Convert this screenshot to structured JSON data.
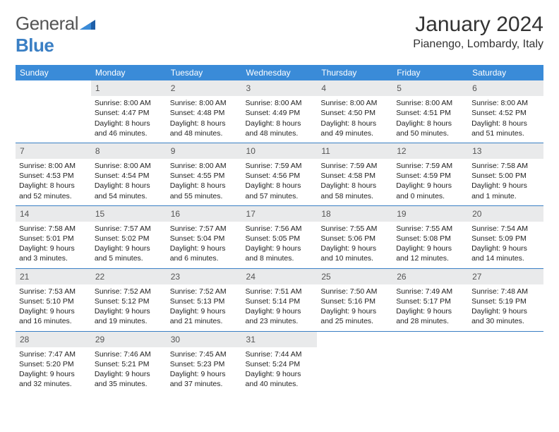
{
  "logo": {
    "word1": "General",
    "word2": "Blue"
  },
  "title": "January 2024",
  "location": "Pianengo, Lombardy, Italy",
  "colors": {
    "header_bg": "#3a8bd8",
    "header_text": "#ffffff",
    "daynum_bg": "#e9eaeb",
    "rule": "#3a7fc4",
    "logo_gray": "#555555",
    "logo_blue": "#3a7fc4"
  },
  "day_names": [
    "Sunday",
    "Monday",
    "Tuesday",
    "Wednesday",
    "Thursday",
    "Friday",
    "Saturday"
  ],
  "weeks": [
    {
      "nums": [
        "",
        "1",
        "2",
        "3",
        "4",
        "5",
        "6"
      ],
      "cells": [
        {
          "sunrise": "",
          "sunset": "",
          "daylight": ""
        },
        {
          "sunrise": "Sunrise: 8:00 AM",
          "sunset": "Sunset: 4:47 PM",
          "daylight": "Daylight: 8 hours and 46 minutes."
        },
        {
          "sunrise": "Sunrise: 8:00 AM",
          "sunset": "Sunset: 4:48 PM",
          "daylight": "Daylight: 8 hours and 48 minutes."
        },
        {
          "sunrise": "Sunrise: 8:00 AM",
          "sunset": "Sunset: 4:49 PM",
          "daylight": "Daylight: 8 hours and 48 minutes."
        },
        {
          "sunrise": "Sunrise: 8:00 AM",
          "sunset": "Sunset: 4:50 PM",
          "daylight": "Daylight: 8 hours and 49 minutes."
        },
        {
          "sunrise": "Sunrise: 8:00 AM",
          "sunset": "Sunset: 4:51 PM",
          "daylight": "Daylight: 8 hours and 50 minutes."
        },
        {
          "sunrise": "Sunrise: 8:00 AM",
          "sunset": "Sunset: 4:52 PM",
          "daylight": "Daylight: 8 hours and 51 minutes."
        }
      ]
    },
    {
      "nums": [
        "7",
        "8",
        "9",
        "10",
        "11",
        "12",
        "13"
      ],
      "cells": [
        {
          "sunrise": "Sunrise: 8:00 AM",
          "sunset": "Sunset: 4:53 PM",
          "daylight": "Daylight: 8 hours and 52 minutes."
        },
        {
          "sunrise": "Sunrise: 8:00 AM",
          "sunset": "Sunset: 4:54 PM",
          "daylight": "Daylight: 8 hours and 54 minutes."
        },
        {
          "sunrise": "Sunrise: 8:00 AM",
          "sunset": "Sunset: 4:55 PM",
          "daylight": "Daylight: 8 hours and 55 minutes."
        },
        {
          "sunrise": "Sunrise: 7:59 AM",
          "sunset": "Sunset: 4:56 PM",
          "daylight": "Daylight: 8 hours and 57 minutes."
        },
        {
          "sunrise": "Sunrise: 7:59 AM",
          "sunset": "Sunset: 4:58 PM",
          "daylight": "Daylight: 8 hours and 58 minutes."
        },
        {
          "sunrise": "Sunrise: 7:59 AM",
          "sunset": "Sunset: 4:59 PM",
          "daylight": "Daylight: 9 hours and 0 minutes."
        },
        {
          "sunrise": "Sunrise: 7:58 AM",
          "sunset": "Sunset: 5:00 PM",
          "daylight": "Daylight: 9 hours and 1 minute."
        }
      ]
    },
    {
      "nums": [
        "14",
        "15",
        "16",
        "17",
        "18",
        "19",
        "20"
      ],
      "cells": [
        {
          "sunrise": "Sunrise: 7:58 AM",
          "sunset": "Sunset: 5:01 PM",
          "daylight": "Daylight: 9 hours and 3 minutes."
        },
        {
          "sunrise": "Sunrise: 7:57 AM",
          "sunset": "Sunset: 5:02 PM",
          "daylight": "Daylight: 9 hours and 5 minutes."
        },
        {
          "sunrise": "Sunrise: 7:57 AM",
          "sunset": "Sunset: 5:04 PM",
          "daylight": "Daylight: 9 hours and 6 minutes."
        },
        {
          "sunrise": "Sunrise: 7:56 AM",
          "sunset": "Sunset: 5:05 PM",
          "daylight": "Daylight: 9 hours and 8 minutes."
        },
        {
          "sunrise": "Sunrise: 7:55 AM",
          "sunset": "Sunset: 5:06 PM",
          "daylight": "Daylight: 9 hours and 10 minutes."
        },
        {
          "sunrise": "Sunrise: 7:55 AM",
          "sunset": "Sunset: 5:08 PM",
          "daylight": "Daylight: 9 hours and 12 minutes."
        },
        {
          "sunrise": "Sunrise: 7:54 AM",
          "sunset": "Sunset: 5:09 PM",
          "daylight": "Daylight: 9 hours and 14 minutes."
        }
      ]
    },
    {
      "nums": [
        "21",
        "22",
        "23",
        "24",
        "25",
        "26",
        "27"
      ],
      "cells": [
        {
          "sunrise": "Sunrise: 7:53 AM",
          "sunset": "Sunset: 5:10 PM",
          "daylight": "Daylight: 9 hours and 16 minutes."
        },
        {
          "sunrise": "Sunrise: 7:52 AM",
          "sunset": "Sunset: 5:12 PM",
          "daylight": "Daylight: 9 hours and 19 minutes."
        },
        {
          "sunrise": "Sunrise: 7:52 AM",
          "sunset": "Sunset: 5:13 PM",
          "daylight": "Daylight: 9 hours and 21 minutes."
        },
        {
          "sunrise": "Sunrise: 7:51 AM",
          "sunset": "Sunset: 5:14 PM",
          "daylight": "Daylight: 9 hours and 23 minutes."
        },
        {
          "sunrise": "Sunrise: 7:50 AM",
          "sunset": "Sunset: 5:16 PM",
          "daylight": "Daylight: 9 hours and 25 minutes."
        },
        {
          "sunrise": "Sunrise: 7:49 AM",
          "sunset": "Sunset: 5:17 PM",
          "daylight": "Daylight: 9 hours and 28 minutes."
        },
        {
          "sunrise": "Sunrise: 7:48 AM",
          "sunset": "Sunset: 5:19 PM",
          "daylight": "Daylight: 9 hours and 30 minutes."
        }
      ]
    },
    {
      "nums": [
        "28",
        "29",
        "30",
        "31",
        "",
        "",
        ""
      ],
      "cells": [
        {
          "sunrise": "Sunrise: 7:47 AM",
          "sunset": "Sunset: 5:20 PM",
          "daylight": "Daylight: 9 hours and 32 minutes."
        },
        {
          "sunrise": "Sunrise: 7:46 AM",
          "sunset": "Sunset: 5:21 PM",
          "daylight": "Daylight: 9 hours and 35 minutes."
        },
        {
          "sunrise": "Sunrise: 7:45 AM",
          "sunset": "Sunset: 5:23 PM",
          "daylight": "Daylight: 9 hours and 37 minutes."
        },
        {
          "sunrise": "Sunrise: 7:44 AM",
          "sunset": "Sunset: 5:24 PM",
          "daylight": "Daylight: 9 hours and 40 minutes."
        },
        {
          "sunrise": "",
          "sunset": "",
          "daylight": ""
        },
        {
          "sunrise": "",
          "sunset": "",
          "daylight": ""
        },
        {
          "sunrise": "",
          "sunset": "",
          "daylight": ""
        }
      ]
    }
  ]
}
